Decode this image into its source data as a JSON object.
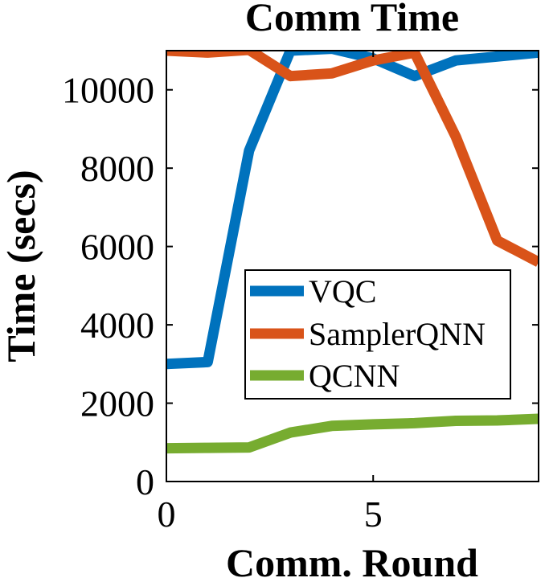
{
  "chart_data": {
    "type": "line",
    "title": "Comm Time",
    "xlabel": "Comm. Round",
    "ylabel": "Time (secs)",
    "xlim": [
      0,
      9
    ],
    "ylim": [
      0,
      11000
    ],
    "xticks": [
      0,
      5
    ],
    "yticks": [
      0,
      2000,
      4000,
      6000,
      8000,
      10000
    ],
    "grid": false,
    "legend_position": "bottom-center",
    "x": [
      0,
      1,
      2,
      3,
      4,
      5,
      6,
      7,
      8,
      9
    ],
    "series": [
      {
        "name": "VQC",
        "color": "#0072BD",
        "values": [
          3000,
          3050,
          8450,
          11000,
          11050,
          10800,
          10350,
          10750,
          10850,
          10950
        ]
      },
      {
        "name": "SamplerQNN",
        "color": "#D95319",
        "values": [
          11000,
          10950,
          11020,
          10350,
          10420,
          10750,
          10950,
          8800,
          6150,
          5600
        ]
      },
      {
        "name": "QCNN",
        "color": "#77AC30",
        "values": [
          850,
          860,
          870,
          1250,
          1420,
          1460,
          1490,
          1550,
          1560,
          1600
        ]
      }
    ]
  }
}
